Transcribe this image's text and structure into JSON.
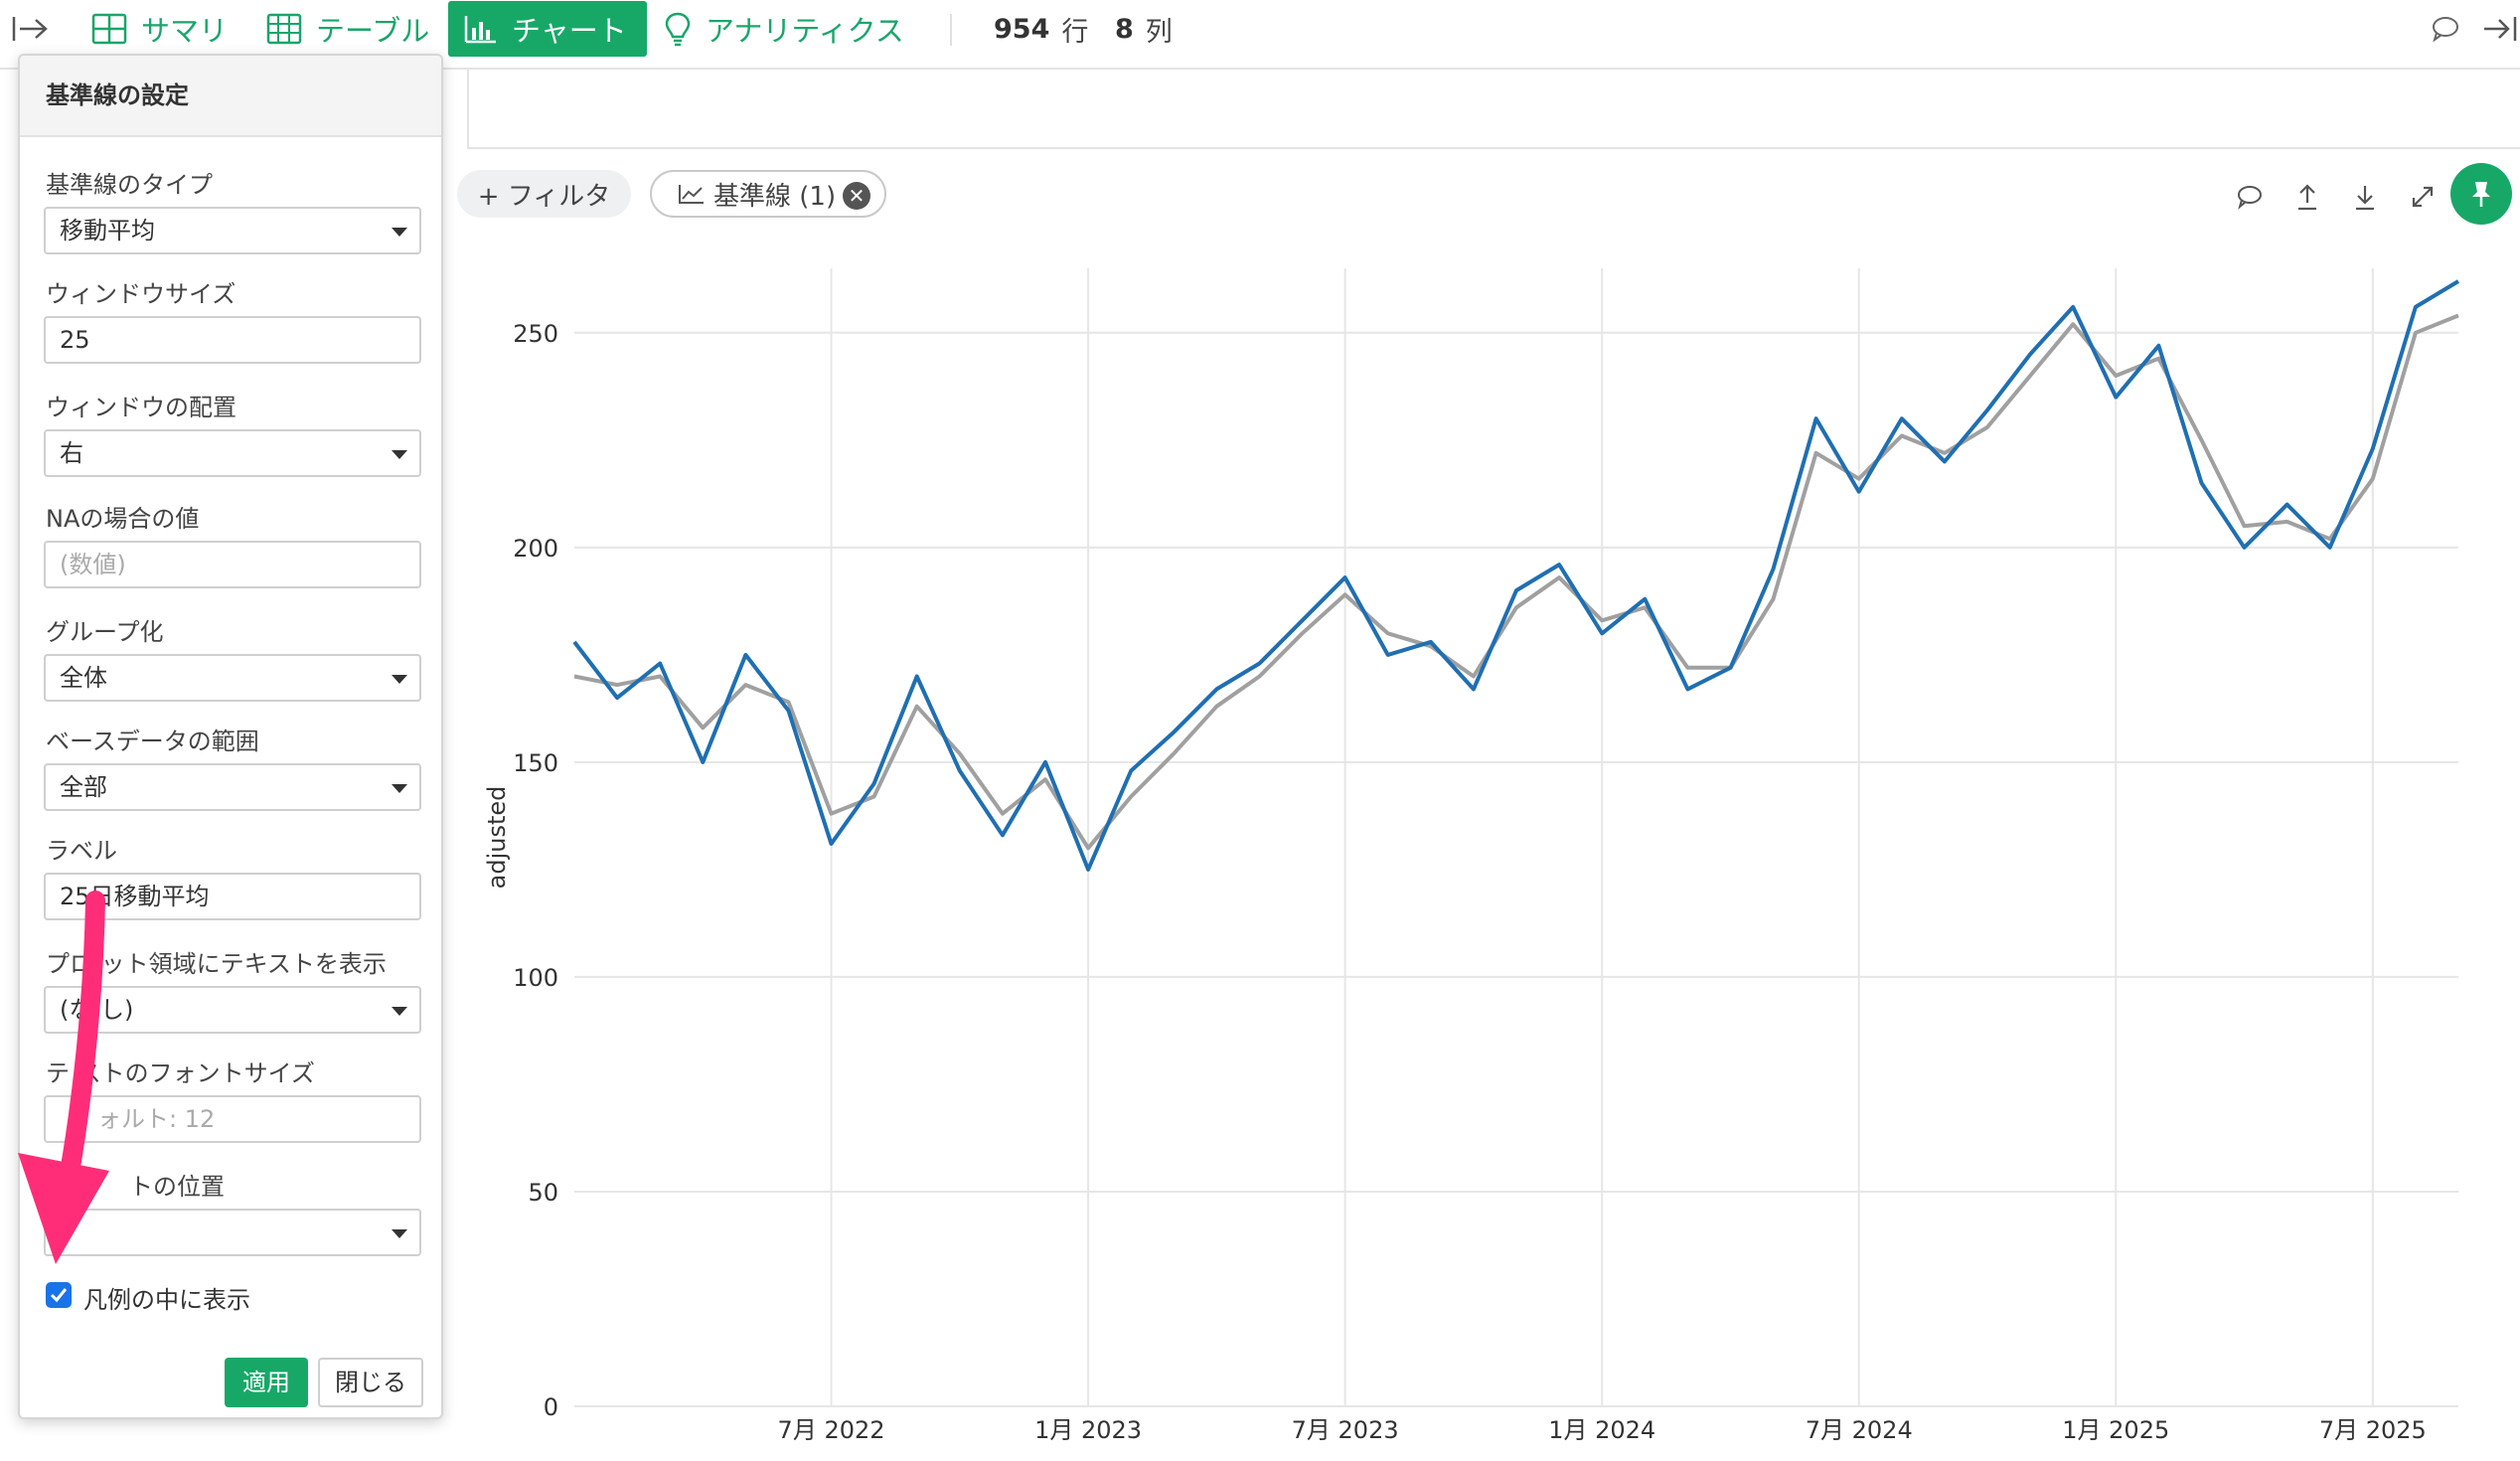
{
  "toolbar": {
    "tabs": [
      {
        "label": "サマリ",
        "icon": "summary-grid-icon"
      },
      {
        "label": "テーブル",
        "icon": "table-icon"
      },
      {
        "label": "チャート",
        "icon": "bar-chart-icon",
        "active": true
      },
      {
        "label": "アナリティクス",
        "icon": "lightbulb-icon"
      }
    ],
    "rows_count": "954",
    "rows_unit": "行",
    "cols_count": "8",
    "cols_unit": "列"
  },
  "chips": {
    "filter_label": "+ フィルタ",
    "refline_label": "基準線 (1)"
  },
  "panel": {
    "title": "基準線の設定",
    "fields": [
      {
        "label": "基準線のタイプ",
        "value": "移動平均",
        "kind": "select"
      },
      {
        "label": "ウィンドウサイズ",
        "value": "25",
        "kind": "input"
      },
      {
        "label": "ウィンドウの配置",
        "value": "右",
        "kind": "select"
      },
      {
        "label": "NAの場合の値",
        "placeholder": "(数値)",
        "kind": "input"
      },
      {
        "label": "グループ化",
        "value": "全体",
        "kind": "select"
      },
      {
        "label": "ベースデータの範囲",
        "value": "全部",
        "kind": "select"
      },
      {
        "label": "ラベル",
        "value": "25日移動平均",
        "kind": "input"
      },
      {
        "label": "プロ ット領域にテキストを表示",
        "value": "(な し)",
        "kind": "select"
      },
      {
        "label": "テ ストのフォントサイズ",
        "placeholder": "ォルト: 12",
        "kind": "input"
      },
      {
        "label": "トの位置",
        "value": "",
        "kind": "select"
      }
    ],
    "legend_checkbox_label": "凡例の中に表示",
    "legend_checkbox_checked": true,
    "apply_label": "適用",
    "close_label": "閉じる"
  },
  "colors": {
    "accent": "#17a868",
    "series_line": "#1f6fb2",
    "moving_avg_line": "#a0a0a0",
    "arrow": "#ff2d78"
  },
  "chart_data": {
    "type": "line",
    "ylabel": "adjusted",
    "xlabel": "",
    "ylim": [
      0,
      265
    ],
    "yticks": [
      0,
      50,
      100,
      150,
      200,
      250
    ],
    "xticks": [
      "7月 2022",
      "1月 2023",
      "7月 2023",
      "1月 2024",
      "7月 2024",
      "1月 2025",
      "7月 2025"
    ],
    "grid": true,
    "series": [
      {
        "x": [
          "2022-01",
          "2022-02",
          "2022-03",
          "2022-04",
          "2022-05",
          "2022-06",
          "2022-07",
          "2022-08",
          "2022-09",
          "2022-10",
          "2022-11",
          "2022-12",
          "2023-01",
          "2023-02",
          "2023-03",
          "2023-04",
          "2023-05",
          "2023-06",
          "2023-07",
          "2023-08",
          "2023-09",
          "2023-10",
          "2023-11",
          "2023-12",
          "2024-01",
          "2024-02",
          "2024-03",
          "2024-04",
          "2024-05",
          "2024-06",
          "2024-07",
          "2024-08",
          "2024-09",
          "2024-10",
          "2024-11",
          "2024-12",
          "2025-01",
          "2025-02",
          "2025-03",
          "2025-04",
          "2025-05",
          "2025-06",
          "2025-07",
          "2025-08",
          "2025-09"
        ],
        "values": [
          178,
          165,
          173,
          150,
          175,
          162,
          131,
          145,
          170,
          148,
          133,
          150,
          125,
          148,
          157,
          167,
          173,
          183,
          193,
          175,
          178,
          167,
          190,
          196,
          180,
          188,
          167,
          172,
          195,
          230,
          213,
          230,
          220,
          232,
          245,
          256,
          235,
          247,
          215,
          200,
          210,
          200,
          223,
          256,
          262
        ]
      },
      {
        "x": [
          "2022-01",
          "2022-02",
          "2022-03",
          "2022-04",
          "2022-05",
          "2022-06",
          "2022-07",
          "2022-08",
          "2022-09",
          "2022-10",
          "2022-11",
          "2022-12",
          "2023-01",
          "2023-02",
          "2023-03",
          "2023-04",
          "2023-05",
          "2023-06",
          "2023-07",
          "2023-08",
          "2023-09",
          "2023-10",
          "2023-11",
          "2023-12",
          "2024-01",
          "2024-02",
          "2024-03",
          "2024-04",
          "2024-05",
          "2024-06",
          "2024-07",
          "2024-08",
          "2024-09",
          "2024-10",
          "2024-11",
          "2024-12",
          "2025-01",
          "2025-02",
          "2025-03",
          "2025-04",
          "2025-05",
          "2025-06",
          "2025-07",
          "2025-08",
          "2025-09"
        ],
        "values": [
          170,
          168,
          170,
          158,
          168,
          164,
          138,
          142,
          163,
          152,
          138,
          146,
          130,
          142,
          152,
          163,
          170,
          180,
          189,
          180,
          177,
          170,
          186,
          193,
          183,
          186,
          172,
          172,
          188,
          222,
          216,
          226,
          222,
          228,
          240,
          252,
          240,
          244,
          225,
          205,
          206,
          202,
          216,
          250,
          254
        ]
      }
    ]
  }
}
